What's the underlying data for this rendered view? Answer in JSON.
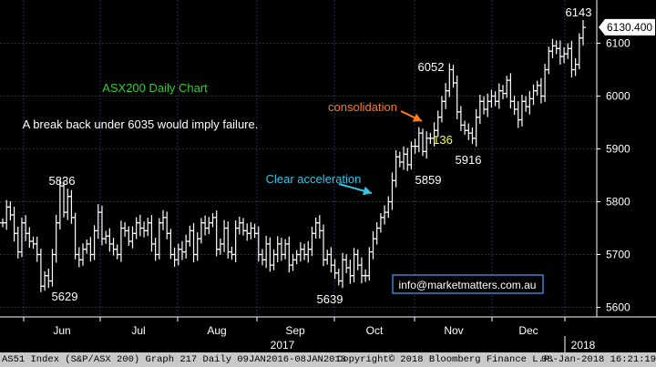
{
  "chart_data": {
    "type": "ohlc",
    "title": "ASX200 Daily Chart",
    "ylim": [
      5575,
      6175
    ],
    "y_ticks": [
      5600,
      5700,
      5800,
      5900,
      6000,
      6100
    ],
    "x_months": [
      "Jun",
      "Jul",
      "Aug",
      "Sep",
      "Oct",
      "Nov",
      "Dec"
    ],
    "x_years": [
      "2017",
      "2018"
    ],
    "last_value": "6130.400",
    "grid": true,
    "colors": {
      "background": "#000000",
      "bars": "#ffffff",
      "grid": "#1a3560",
      "title": "#33cc33",
      "orange_note": "#ff7a1a",
      "cyan_note": "#33c6e6",
      "yellow_note": "#ffff33",
      "email_border": "#3a7fd0"
    },
    "series_close": [
      5760,
      5790,
      5775,
      5740,
      5705,
      5760,
      5740,
      5725,
      5720,
      5700,
      5640,
      5660,
      5650,
      5700,
      5760,
      5830,
      5780,
      5810,
      5770,
      5700,
      5690,
      5710,
      5720,
      5700,
      5745,
      5780,
      5730,
      5735,
      5720,
      5710,
      5700,
      5750,
      5745,
      5725,
      5740,
      5760,
      5750,
      5745,
      5760,
      5720,
      5700,
      5760,
      5770,
      5740,
      5700,
      5690,
      5710,
      5705,
      5725,
      5745,
      5700,
      5730,
      5760,
      5750,
      5760,
      5770,
      5710,
      5720,
      5750,
      5705,
      5700,
      5750,
      5760,
      5745,
      5740,
      5750,
      5740,
      5700,
      5690,
      5720,
      5680,
      5700,
      5720,
      5700,
      5720,
      5680,
      5690,
      5700,
      5710,
      5700,
      5710,
      5740,
      5760,
      5745,
      5690,
      5700,
      5680,
      5665,
      5650,
      5690,
      5675,
      5660,
      5700,
      5680,
      5660,
      5660,
      5705,
      5730,
      5750,
      5770,
      5780,
      5800,
      5840,
      5885,
      5875,
      5890,
      5870,
      5905,
      5905,
      5930,
      5895,
      5920,
      5920,
      5935,
      5960,
      5990,
      6010,
      6050,
      6025,
      5970,
      5945,
      5935,
      5930,
      5920,
      5960,
      5990,
      5975,
      5990,
      6000,
      5990,
      6010,
      6005,
      6030,
      5990,
      5975,
      5955,
      5990,
      5980,
      5995,
      6010,
      6020,
      6000,
      6050,
      6085,
      6095,
      6090,
      6075,
      6080,
      6090,
      6050,
      6060,
      6110,
      6130
    ],
    "annotations": [
      {
        "text": "5836",
        "color": "#ffffff"
      },
      {
        "text": "5629",
        "color": "#ffffff"
      },
      {
        "text": "5639",
        "color": "#ffffff"
      },
      {
        "text": "5859",
        "color": "#ffffff"
      },
      {
        "text": "6052",
        "color": "#ffffff"
      },
      {
        "text": "5916",
        "color": "#ffffff"
      },
      {
        "text": "6143",
        "color": "#ffffff"
      },
      {
        "text": "136",
        "color": "#ffff33"
      },
      {
        "text": "consolidation",
        "color": "#ff7a1a"
      },
      {
        "text": "Clear acceleration",
        "color": "#33c6e6"
      },
      {
        "text": "A break back under 6035 would imply failure.",
        "color": "#ffffff"
      }
    ],
    "email": "info@marketmatters.com.au"
  },
  "footer": {
    "left": "AS51 Index (S&P/ASX 200) Graph 217  Daily 09JAN2016-08JAN2018",
    "center": "Copyright© 2018 Bloomberg Finance L.P.",
    "right": "08-Jan-2018 16:21:19"
  }
}
